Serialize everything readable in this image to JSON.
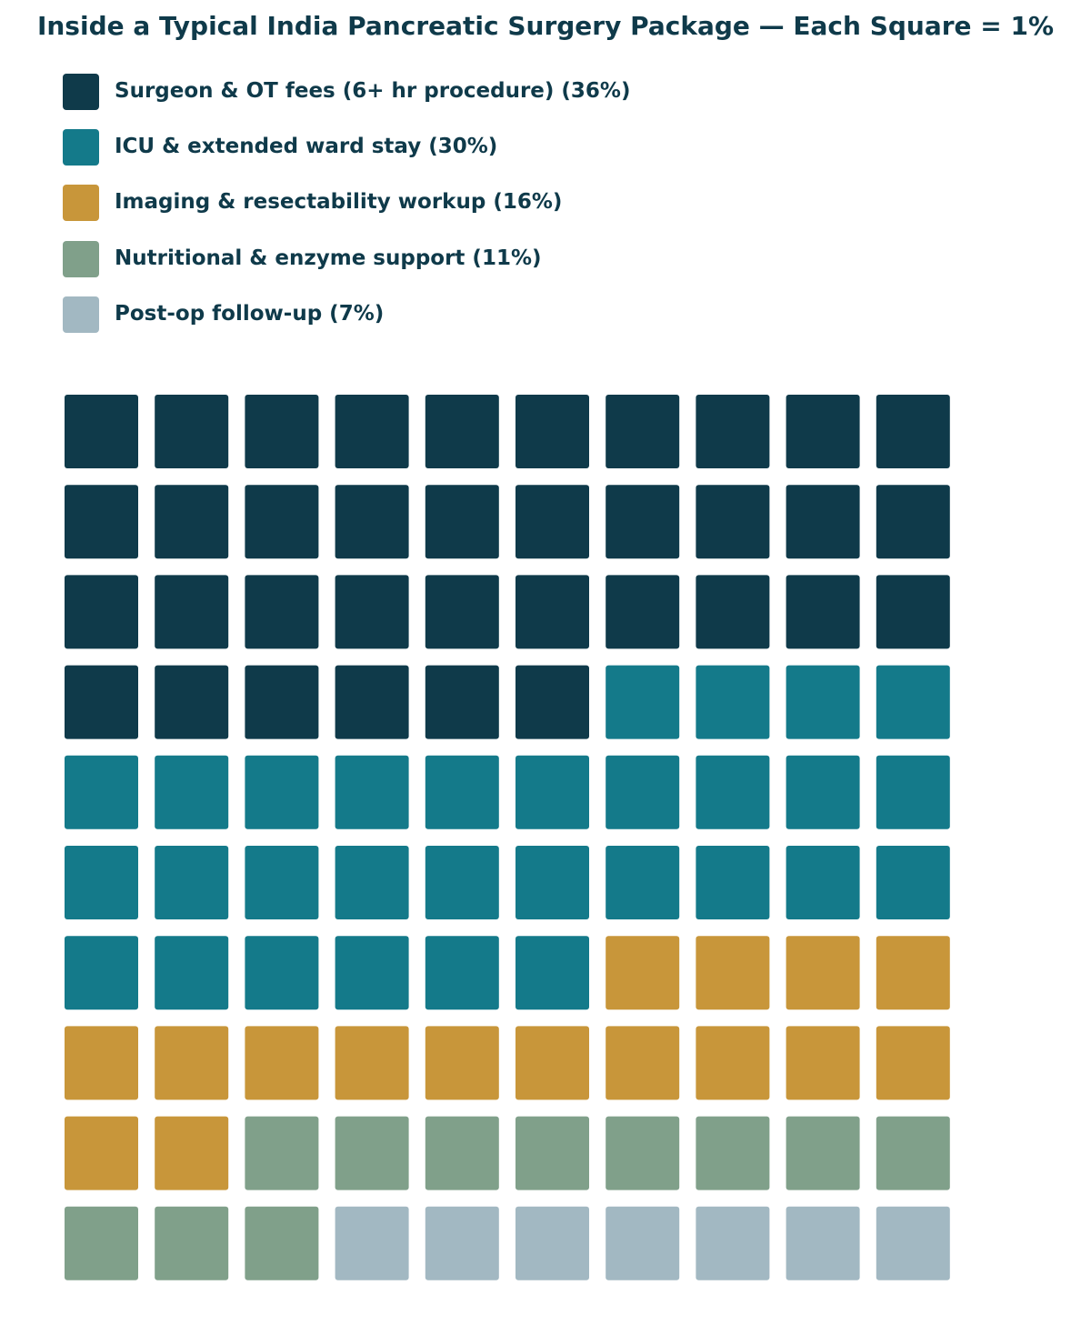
{
  "chart_data": {
    "type": "waffle",
    "title": "Inside a Typical India Pancreatic Surgery Package — Each Square = 1%",
    "grid": {
      "rows": 10,
      "cols": 10,
      "unit_percent": 1
    },
    "legend_placement": "top-left",
    "series": [
      {
        "name": "Surgeon & OT fees (6+ hr procedure)",
        "value": 36,
        "label": "Surgeon & OT fees (6+ hr procedure) (36%)",
        "color": "#0f3a4a"
      },
      {
        "name": "ICU & extended ward stay",
        "value": 30,
        "label": "ICU & extended ward stay (30%)",
        "color": "#147a8a"
      },
      {
        "name": "Imaging & resectability workup",
        "value": 16,
        "label": "Imaging & resectability workup (16%)",
        "color": "#c8963a"
      },
      {
        "name": "Nutritional & enzyme support",
        "value": 11,
        "label": "Nutritional & enzyme support (11%)",
        "color": "#80a08a"
      },
      {
        "name": "Post-op follow-up",
        "value": 7,
        "label": "Post-op follow-up (7%)",
        "color": "#a2b8c2"
      }
    ]
  }
}
